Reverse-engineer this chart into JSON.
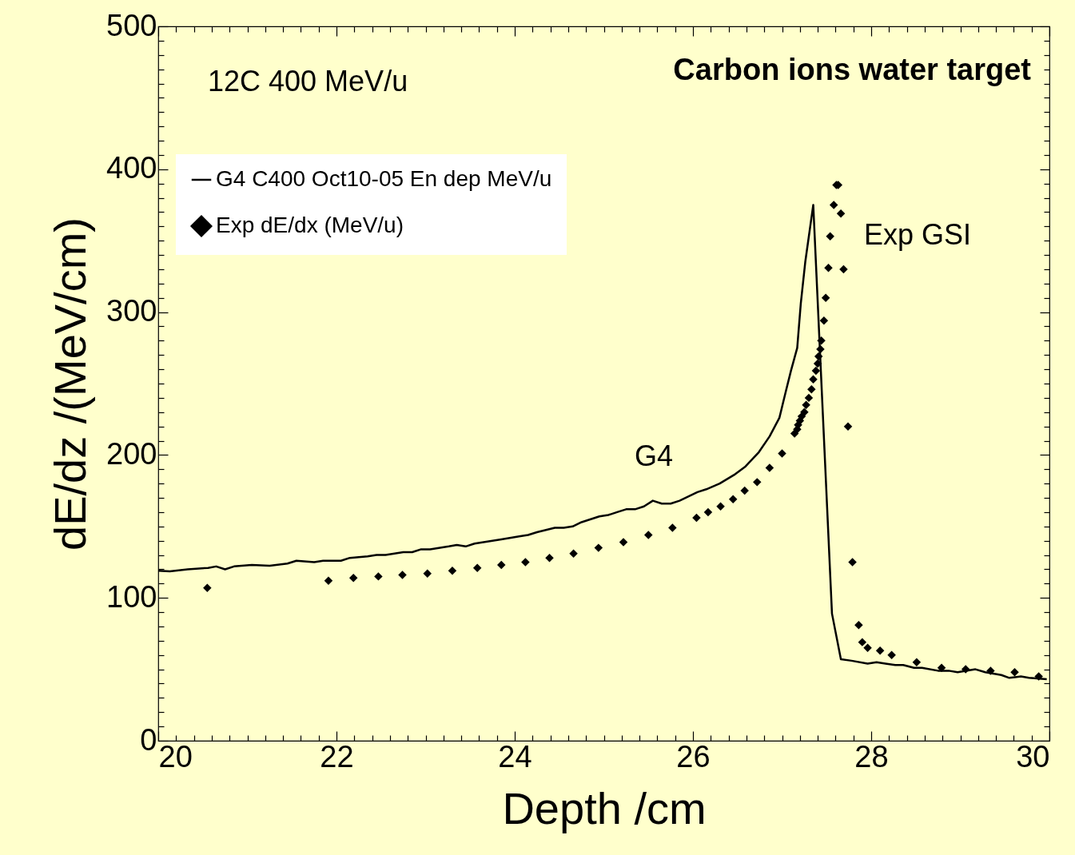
{
  "chart_data": {
    "type": "line",
    "xlabel": "Depth /cm",
    "ylabel": "dE/dz /(MeV/cm)",
    "xlim": [
      20,
      30
    ],
    "ylim": [
      0,
      500
    ],
    "xticks": [
      20,
      {
        "value": 20.2,
        "label": null
      },
      {
        "value": 20.4,
        "label": null
      },
      {
        "value": 20.6,
        "label": null
      },
      {
        "value": 20.8,
        "label": null
      },
      {
        "value": 21,
        "label": null
      },
      {
        "value": 21.2,
        "label": null
      },
      {
        "value": 21.4,
        "label": null
      },
      {
        "value": 21.6,
        "label": null
      },
      {
        "value": 21.8,
        "label": null
      },
      22,
      {
        "value": 22.2,
        "label": null
      },
      {
        "value": 22.4,
        "label": null
      },
      {
        "value": 22.6,
        "label": null
      },
      {
        "value": 22.8,
        "label": null
      },
      {
        "value": 23,
        "label": null
      },
      {
        "value": 23.2,
        "label": null
      },
      {
        "value": 23.4,
        "label": null
      },
      {
        "value": 23.6,
        "label": null
      },
      {
        "value": 23.8,
        "label": null
      },
      24,
      {
        "value": 24.2,
        "label": null
      },
      {
        "value": 24.4,
        "label": null
      },
      {
        "value": 24.6,
        "label": null
      },
      {
        "value": 24.8,
        "label": null
      },
      {
        "value": 25,
        "label": null
      },
      {
        "value": 25.2,
        "label": null
      },
      {
        "value": 25.4,
        "label": null
      },
      {
        "value": 25.6,
        "label": null
      },
      {
        "value": 25.8,
        "label": null
      },
      26,
      {
        "value": 26.2,
        "label": null
      },
      {
        "value": 26.4,
        "label": null
      },
      {
        "value": 26.6,
        "label": null
      },
      {
        "value": 26.8,
        "label": null
      },
      {
        "value": 27,
        "label": null
      },
      {
        "value": 27.2,
        "label": null
      },
      {
        "value": 27.4,
        "label": null
      },
      {
        "value": 27.6,
        "label": null
      },
      {
        "value": 27.8,
        "label": null
      },
      28,
      {
        "value": 28.2,
        "label": null
      },
      {
        "value": 28.4,
        "label": null
      },
      {
        "value": 28.6,
        "label": null
      },
      {
        "value": 28.8,
        "label": null
      },
      {
        "value": 29,
        "label": null
      },
      {
        "value": 29.2,
        "label": null
      },
      {
        "value": 29.4,
        "label": null
      },
      {
        "value": 29.6,
        "label": null
      },
      {
        "value": 29.8,
        "label": null
      },
      30
    ],
    "yticks": [
      0,
      {
        "value": 10,
        "label": null
      },
      {
        "value": 20,
        "label": null
      },
      {
        "value": 30,
        "label": null
      },
      {
        "value": 40,
        "label": null
      },
      {
        "value": 50,
        "label": null
      },
      {
        "value": 60,
        "label": null
      },
      {
        "value": 70,
        "label": null
      },
      {
        "value": 80,
        "label": null
      },
      {
        "value": 90,
        "label": null
      },
      100,
      {
        "value": 110,
        "label": null
      },
      {
        "value": 120,
        "label": null
      },
      {
        "value": 130,
        "label": null
      },
      {
        "value": 140,
        "label": null
      },
      {
        "value": 150,
        "label": null
      },
      {
        "value": 160,
        "label": null
      },
      {
        "value": 170,
        "label": null
      },
      {
        "value": 180,
        "label": null
      },
      {
        "value": 190,
        "label": null
      },
      200,
      {
        "value": 210,
        "label": null
      },
      {
        "value": 220,
        "label": null
      },
      {
        "value": 230,
        "label": null
      },
      {
        "value": 240,
        "label": null
      },
      {
        "value": 250,
        "label": null
      },
      {
        "value": 260,
        "label": null
      },
      {
        "value": 270,
        "label": null
      },
      {
        "value": 280,
        "label": null
      },
      {
        "value": 290,
        "label": null
      },
      300,
      {
        "value": 310,
        "label": null
      },
      {
        "value": 320,
        "label": null
      },
      {
        "value": 330,
        "label": null
      },
      {
        "value": 340,
        "label": null
      },
      {
        "value": 350,
        "label": null
      },
      {
        "value": 360,
        "label": null
      },
      {
        "value": 370,
        "label": null
      },
      {
        "value": 380,
        "label": null
      },
      {
        "value": 390,
        "label": null
      },
      400,
      {
        "value": 410,
        "label": null
      },
      {
        "value": 420,
        "label": null
      },
      {
        "value": 430,
        "label": null
      },
      {
        "value": 440,
        "label": null
      },
      {
        "value": 450,
        "label": null
      },
      {
        "value": 460,
        "label": null
      },
      {
        "value": 470,
        "label": null
      },
      {
        "value": 480,
        "label": null
      },
      {
        "value": 490,
        "label": null
      },
      500
    ],
    "grid": false,
    "legend": "top left",
    "series": [
      {
        "name": "G4 C400 Oct10-05 En dep MeV/u",
        "color": "#000000",
        "x": [
          20,
          20.13,
          20.33,
          20.56,
          20.65,
          20.75,
          20.85,
          21.05,
          21.25,
          21.45,
          21.55,
          21.75,
          21.85,
          22.05,
          22.15,
          22.35,
          22.45,
          22.55,
          22.75,
          22.85,
          22.95,
          23.05,
          23.26,
          23.35,
          23.45,
          23.55,
          23.75,
          23.85,
          24.05,
          24.15,
          24.25,
          24.45,
          24.55,
          24.65,
          24.75,
          24.95,
          25.05,
          25.15,
          25.25,
          25.35,
          25.45,
          25.55,
          25.65,
          25.75,
          25.85,
          26.05,
          26.15,
          26.3,
          26.46,
          26.59,
          26.74,
          26.86,
          26.97,
          27.04,
          27.1,
          27.17,
          27.21,
          27.26,
          27.35,
          27.56,
          27.66,
          27.78,
          27.96,
          28.06,
          28.16,
          28.27,
          28.36,
          28.48,
          28.57,
          28.75,
          28.87,
          28.97,
          29.17,
          29.28,
          29.46,
          29.55,
          29.68,
          29.77,
          29.97
        ],
        "values": [
          119,
          118.6,
          120,
          121,
          122,
          120,
          122,
          123,
          122.5,
          124,
          126,
          125,
          126,
          126,
          128,
          129,
          130,
          130,
          132,
          132,
          134,
          134,
          136,
          137,
          136,
          138,
          140,
          141,
          143,
          144,
          146,
          149,
          149,
          150,
          153,
          157,
          158,
          160,
          162,
          162,
          164,
          168,
          166,
          166,
          168,
          174,
          176,
          180,
          186,
          192,
          202,
          213,
          226,
          244,
          259,
          275,
          306,
          335,
          375,
          89,
          57,
          56,
          54,
          55,
          54,
          53,
          53,
          51,
          51,
          49,
          49,
          48,
          50,
          48,
          46,
          44,
          45,
          44,
          43
        ]
      },
      {
        "name": "Exp dE/dx (MeV/u)",
        "type": "scatter",
        "marker": "diamond",
        "color": "#000000",
        "x": [
          20.55,
          21.91,
          22.19,
          22.47,
          22.74,
          23.02,
          23.3,
          23.58,
          23.85,
          24.12,
          24.39,
          24.66,
          24.94,
          25.22,
          25.5,
          25.77,
          26.04,
          26.17,
          26.31,
          26.45,
          26.58,
          26.72,
          26.86,
          27,
          27.14,
          27.17,
          27.18,
          27.2,
          27.22,
          27.25,
          27.27,
          27.3,
          27.33,
          27.35,
          27.38,
          27.4,
          27.41,
          27.43,
          27.44,
          27.47,
          27.49,
          27.52,
          27.54,
          27.58,
          27.61,
          27.63,
          27.66,
          27.69,
          27.74,
          27.79,
          27.86,
          27.9,
          27.96,
          28.1,
          28.23,
          28.51,
          28.79,
          29.06,
          29.34,
          29.61,
          29.88
        ],
        "values": [
          107,
          112,
          114,
          115,
          116,
          117,
          119,
          121,
          123,
          125,
          128,
          131,
          135,
          139,
          144,
          149,
          156,
          160,
          164,
          169,
          175,
          181,
          191,
          201,
          215,
          218,
          221,
          224,
          227,
          230,
          235,
          240,
          246,
          253,
          259,
          264,
          269,
          274,
          280,
          294,
          310,
          331,
          353,
          375,
          389,
          389,
          369,
          330,
          220,
          125,
          81,
          69,
          65,
          63,
          60,
          55,
          51,
          50,
          49,
          48,
          45
        ]
      }
    ],
    "annotations": [
      "12C 400 MeV/u",
      "Carbon ions water target",
      "G4",
      "Exp GSI"
    ]
  }
}
